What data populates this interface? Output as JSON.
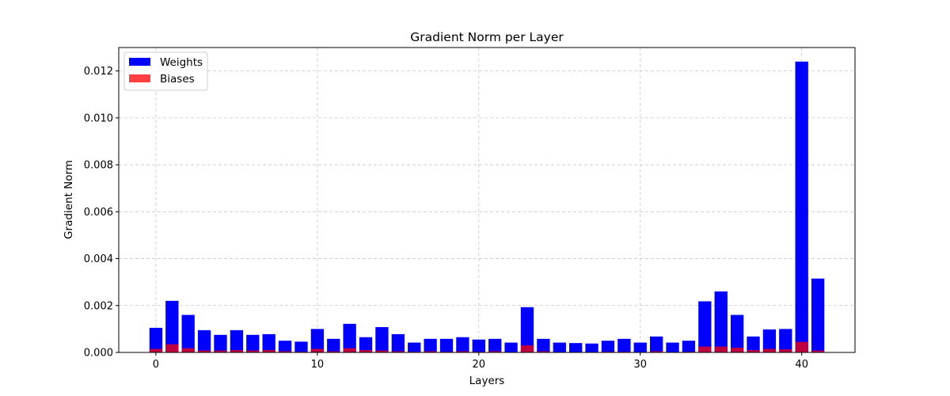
{
  "chart_data": {
    "type": "bar",
    "title": "Gradient Norm per Layer",
    "xlabel": "Layers",
    "ylabel": "Gradient Norm",
    "xlim": [
      -2.3,
      43.3
    ],
    "ylim": [
      0,
      0.013
    ],
    "xticks": [
      0,
      10,
      20,
      30,
      40
    ],
    "yticks": [
      0,
      0.002,
      0.004,
      0.006,
      0.008,
      0.01,
      0.012
    ],
    "ytick_labels": [
      "0.000",
      "0.002",
      "0.004",
      "0.006",
      "0.008",
      "0.010",
      "0.012"
    ],
    "grid": true,
    "legend_position": "top-left",
    "x": [
      0,
      1,
      2,
      3,
      4,
      5,
      6,
      7,
      8,
      9,
      10,
      11,
      12,
      13,
      14,
      15,
      16,
      17,
      18,
      19,
      20,
      21,
      22,
      23,
      24,
      25,
      26,
      27,
      28,
      29,
      30,
      31,
      32,
      33,
      34,
      35,
      36,
      37,
      38,
      39,
      40,
      41
    ],
    "series": [
      {
        "name": "Weights",
        "color": "#0000ff",
        "values": [
          0.00105,
          0.0022,
          0.0016,
          0.00095,
          0.00075,
          0.00095,
          0.00075,
          0.00078,
          0.0005,
          0.00046,
          0.001,
          0.00058,
          0.00122,
          0.00065,
          0.00108,
          0.00078,
          0.00042,
          0.00058,
          0.00058,
          0.00065,
          0.00055,
          0.00058,
          0.00042,
          0.00193,
          0.00058,
          0.00042,
          0.0004,
          0.00038,
          0.0005,
          0.00058,
          0.00042,
          0.00068,
          0.00042,
          0.0005,
          0.00218,
          0.0026,
          0.0016,
          0.00068,
          0.00098,
          0.001,
          0.0124,
          0.00315
        ]
      },
      {
        "name": "Biases",
        "color": "#ff0000",
        "opacity": 0.75,
        "values": [
          0.00015,
          0.00035,
          0.00018,
          8e-05,
          8e-05,
          0.0001,
          8e-05,
          0.0001,
          5e-05,
          3e-05,
          0.00015,
          5e-05,
          0.00018,
          0.0001,
          8e-05,
          5e-05,
          3e-05,
          5e-05,
          3e-05,
          5e-05,
          3e-05,
          5e-05,
          2e-05,
          0.0003,
          5e-05,
          2e-05,
          2e-05,
          2e-05,
          3e-05,
          3e-05,
          2e-05,
          5e-05,
          2e-05,
          3e-05,
          0.00025,
          0.00025,
          0.0002,
          0.0001,
          0.00015,
          0.00013,
          0.00045,
          8e-05
        ]
      }
    ]
  }
}
